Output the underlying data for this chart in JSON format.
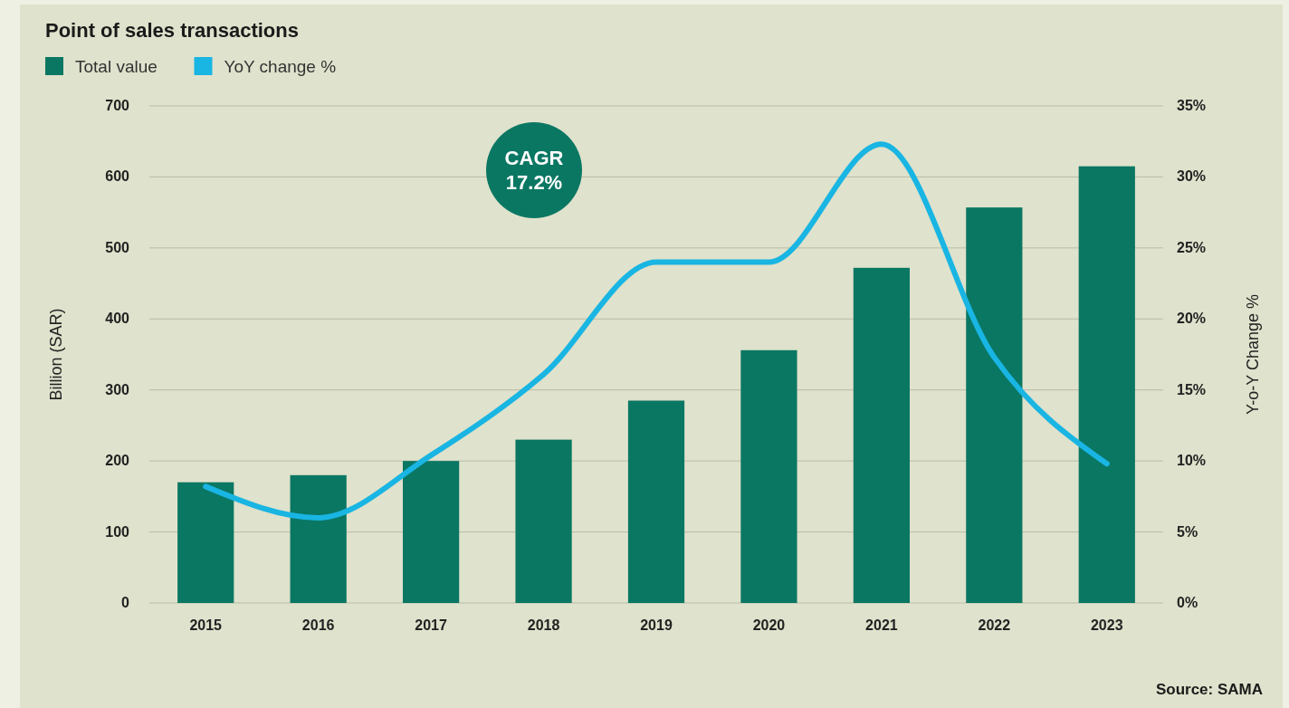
{
  "chart_data": {
    "type": "bar",
    "title": "Point of sales transactions",
    "categories": [
      "2015",
      "2016",
      "2017",
      "2018",
      "2019",
      "2020",
      "2021",
      "2022",
      "2023"
    ],
    "series": [
      {
        "name": "Total value",
        "color": "#0a7763",
        "values": [
          170,
          180,
          200,
          230,
          285,
          356,
          472,
          557,
          615
        ]
      },
      {
        "name": "YoY change %",
        "type": "line",
        "axis": "y2",
        "color": "#19b5e3",
        "values": [
          8.2,
          6,
          10.4,
          16.1,
          24,
          24,
          32.3,
          17.3,
          9.8
        ]
      }
    ],
    "ylabel": "Billion (SAR)",
    "y2label": "Y-o-Y Change %",
    "ylim": [
      0,
      700
    ],
    "yticks": [
      0,
      100,
      200,
      300,
      400,
      500,
      600,
      700
    ],
    "y2lim": [
      0,
      35
    ],
    "y2ticks": [
      {
        "value": 0,
        "label": "0%"
      },
      {
        "value": 5,
        "label": "5%"
      },
      {
        "value": 10,
        "label": "10%"
      },
      {
        "value": 15,
        "label": "15%"
      },
      {
        "value": 20,
        "label": "20%"
      },
      {
        "value": 25,
        "label": "25%"
      },
      {
        "value": 30,
        "label": "30%"
      },
      {
        "value": 35,
        "label": "35%"
      }
    ],
    "grid": "y",
    "legend": "top left",
    "marker": "none",
    "line_style": "solid",
    "annotations": [
      "CAGR 17.2%",
      "Source: SAMA"
    ]
  }
}
